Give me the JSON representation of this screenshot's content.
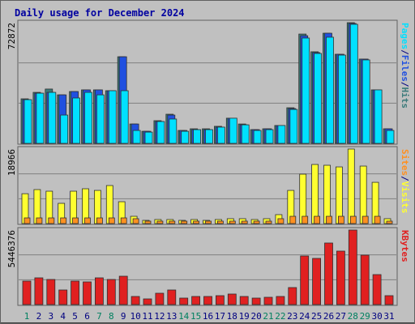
{
  "title": "Daily usage for December 2024",
  "legend_separator": "/",
  "chart_data": [
    {
      "type": "bar",
      "ylim": [
        0,
        72872
      ],
      "yticks": [
        72872
      ],
      "series": [
        {
          "name": "Hits",
          "color": "#3a7a7a",
          "values": [
            26900,
            30800,
            32800,
            29300,
            31300,
            32300,
            32300,
            31800,
            52300,
            11700,
            7300,
            13700,
            17600,
            7800,
            8800,
            8800,
            10300,
            15200,
            11700,
            8300,
            8800,
            10800,
            21500,
            66000,
            55300,
            66500,
            53800,
            72872,
            50900,
            32300,
            8800
          ]
        },
        {
          "name": "Files",
          "color": "#2050e0",
          "values": [
            26400,
            30300,
            30800,
            29300,
            31300,
            32300,
            32300,
            31800,
            52300,
            11700,
            7300,
            13200,
            17100,
            7800,
            8300,
            8300,
            9800,
            15200,
            11200,
            8300,
            8800,
            10800,
            21000,
            65000,
            54800,
            66500,
            53800,
            72400,
            50900,
            32300,
            8800
          ]
        },
        {
          "name": "Pages",
          "color": "#00e0ff",
          "values": [
            26400,
            30300,
            30800,
            17100,
            27400,
            30800,
            29300,
            31800,
            31800,
            7800,
            6800,
            13200,
            14700,
            7300,
            8300,
            8300,
            9800,
            15200,
            11200,
            7800,
            8300,
            10800,
            20500,
            63600,
            54300,
            64100,
            53300,
            71900,
            50400,
            32300,
            7800
          ]
        }
      ]
    },
    {
      "type": "bar",
      "ylim": [
        0,
        18966
      ],
      "yticks": [
        18966
      ],
      "series": [
        {
          "name": "Visits",
          "color": "#ffff30",
          "values": [
            7600,
            8650,
            8240,
            5150,
            8240,
            8860,
            8440,
            9680,
            5560,
            1850,
            820,
            1030,
            1030,
            820,
            1030,
            820,
            1030,
            1240,
            1240,
            1030,
            1240,
            2270,
            8440,
            12570,
            15040,
            14840,
            14420,
            18966,
            14630,
            10500,
            1240
          ]
        },
        {
          "name": "Sites",
          "color": "#ff9020",
          "values": [
            1440,
            1440,
            1440,
            1440,
            1440,
            1440,
            1440,
            1440,
            1440,
            1240,
            620,
            620,
            620,
            620,
            620,
            620,
            620,
            620,
            620,
            620,
            620,
            1240,
            1850,
            1850,
            1850,
            1850,
            1850,
            1850,
            1850,
            1850,
            620
          ]
        }
      ]
    },
    {
      "type": "bar",
      "ylim": [
        0,
        5446376
      ],
      "yticks": [
        5446376
      ],
      "categories": [
        "1",
        "2",
        "3",
        "4",
        "5",
        "6",
        "7",
        "8",
        "9",
        "10",
        "11",
        "12",
        "13",
        "14",
        "15",
        "16",
        "17",
        "18",
        "19",
        "20",
        "21",
        "22",
        "23",
        "24",
        "25",
        "26",
        "27",
        "28",
        "29",
        "30",
        "31"
      ],
      "label_colors": [
        "#008060",
        "#000080",
        "#000080",
        "#000080",
        "#000080",
        "#000080",
        "#008060",
        "#008060",
        "#000080",
        "#000080",
        "#000080",
        "#000080",
        "#000080",
        "#008060",
        "#008060",
        "#000080",
        "#000080",
        "#000080",
        "#000080",
        "#000080",
        "#008060",
        "#008060",
        "#000080",
        "#000080",
        "#000080",
        "#000080",
        "#000080",
        "#008060",
        "#008060",
        "#000080",
        "#000080"
      ],
      "series": [
        {
          "name": "KBytes",
          "color": "#e02020",
          "values": [
            1716800,
            1953600,
            1834000,
            1065600,
            1716800,
            1657600,
            1953600,
            1834000,
            2072000,
            592000,
            414400,
            828800,
            1065600,
            473600,
            592000,
            592000,
            651200,
            769600,
            592000,
            473600,
            532800,
            592000,
            1243200,
            3552000,
            3374400,
            4499200,
            3907200,
            5446376,
            3611200,
            2190400,
            651200
          ]
        }
      ]
    }
  ]
}
